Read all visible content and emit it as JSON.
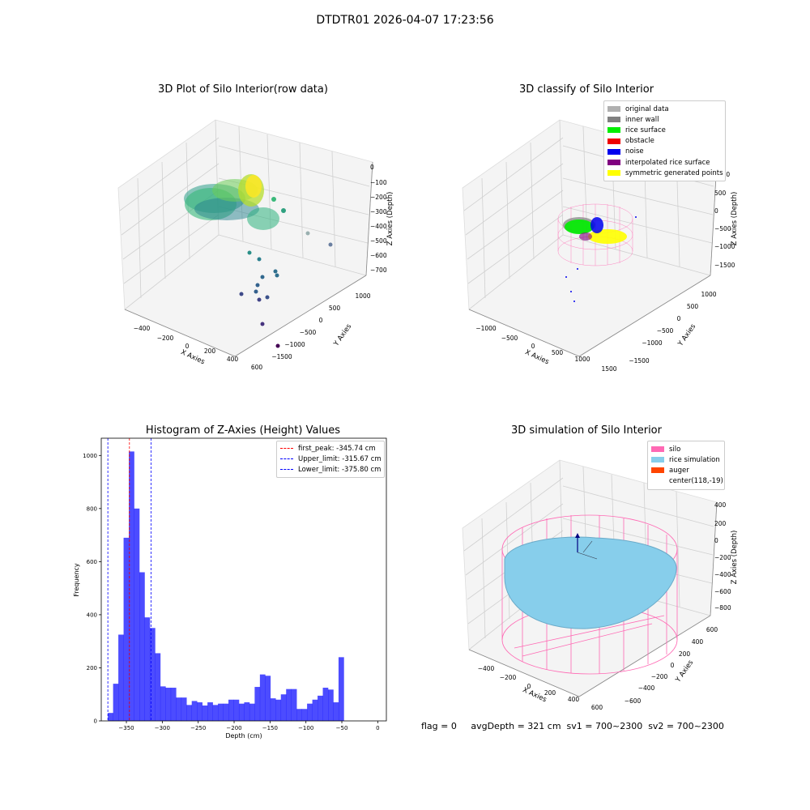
{
  "suptitle": "DTDTR01 2026-04-07 17:23:56",
  "footer": "flag = 0     avgDepth = 321 cm  sv1 = 700~2300  sv2 = 700~2300",
  "panel_raw": {
    "title": "3D Plot of Silo Interior(row data)",
    "xlabel": "X Axies",
    "ylabel": "Y Axies",
    "zlabel": "Z Axies (Depth)",
    "x_ticks": [
      "−400",
      "−200",
      "0",
      "200",
      "400",
      "600"
    ],
    "y_ticks": [
      "1000",
      "500",
      "0",
      "−500",
      "−1000",
      "−1500"
    ],
    "z_ticks": [
      "0",
      "−100",
      "−200",
      "−300",
      "−400",
      "−500",
      "−600",
      "−700"
    ]
  },
  "panel_classify": {
    "title": "3D classify of Silo Interior",
    "xlabel": "X Axies",
    "ylabel": "Y Axies",
    "zlabel": "Z Axies (Depth)",
    "x_ticks": [
      "−1000",
      "−500",
      "0",
      "500",
      "1000",
      "1500"
    ],
    "y_ticks": [
      "1000",
      "500",
      "0",
      "−500",
      "−1000",
      "−1500"
    ],
    "z_ticks": [
      "1000",
      "500",
      "0",
      "−500",
      "−1000",
      "−1500"
    ],
    "legend": [
      {
        "label": "original data",
        "color": "#b0b0b0"
      },
      {
        "label": "inner wall",
        "color": "#808080"
      },
      {
        "label": "rice surface",
        "color": "#00ee00"
      },
      {
        "label": "obstacle",
        "color": "#ee0000"
      },
      {
        "label": "noise",
        "color": "#0000ee"
      },
      {
        "label": "interpolated rice surface",
        "color": "#800080"
      },
      {
        "label": "symmetric generated points",
        "color": "#ffff00"
      }
    ]
  },
  "panel_sim": {
    "title": "3D simulation of Silo Interior",
    "xlabel": "X Axies",
    "ylabel": "Y Axies",
    "zlabel": "Z Axies (Depth)",
    "x_ticks": [
      "−400",
      "−200",
      "0",
      "200",
      "400",
      "600"
    ],
    "y_ticks": [
      "600",
      "400",
      "200",
      "0",
      "−200",
      "−400",
      "−600"
    ],
    "z_ticks": [
      "400",
      "200",
      "0",
      "−200",
      "−400",
      "−600",
      "−800"
    ],
    "legend": [
      {
        "label": "silo",
        "color": "#ff69b4",
        "kind": "patch"
      },
      {
        "label": "rice simulation",
        "color": "#87ceeb",
        "kind": "patch"
      },
      {
        "label": "auger",
        "color": "#ff4500",
        "kind": "patch"
      },
      {
        "label": "center(118,-19)",
        "color": "#ffffff",
        "kind": "none"
      }
    ]
  },
  "chart_data": [
    {
      "type": "bar",
      "title": "Histogram of Z-Axies (Height) Values",
      "xlabel": "Depth (cm)",
      "ylabel": "Frequency",
      "xlim": [
        -385,
        12
      ],
      "ylim": [
        0,
        1065
      ],
      "x_ticks": [
        -350,
        -300,
        -250,
        -200,
        -150,
        -100,
        -50,
        0
      ],
      "x_tick_labels": [
        "−350",
        "−300",
        "−250",
        "−200",
        "−150",
        "−100",
        "−50",
        "0"
      ],
      "y_ticks": [
        0,
        200,
        400,
        600,
        800,
        1000
      ],
      "y_tick_labels": [
        "0",
        "200",
        "400",
        "600",
        "800",
        "1000"
      ],
      "bar_color": "#0000ff",
      "bin_start": -375.8,
      "bin_width": 7.3,
      "values": [
        30,
        140,
        325,
        690,
        1015,
        800,
        560,
        390,
        350,
        255,
        130,
        125,
        125,
        88,
        88,
        60,
        75,
        70,
        58,
        70,
        60,
        65,
        65,
        80,
        80,
        65,
        70,
        65,
        128,
        175,
        170,
        85,
        80,
        100,
        120,
        120,
        45,
        45,
        65,
        80,
        95,
        125,
        118,
        70,
        240
      ],
      "vlines": [
        {
          "label": "first_peak: -345.74 cm",
          "x": -345.74,
          "color": "#ff0000"
        },
        {
          "label": "Upper_limit: -315.67 cm",
          "x": -315.67,
          "color": "#0000ff"
        },
        {
          "label": "Lower_limit: -375.80 cm",
          "x": -375.8,
          "color": "#0000ff"
        }
      ],
      "legend_position": "top-right"
    }
  ]
}
